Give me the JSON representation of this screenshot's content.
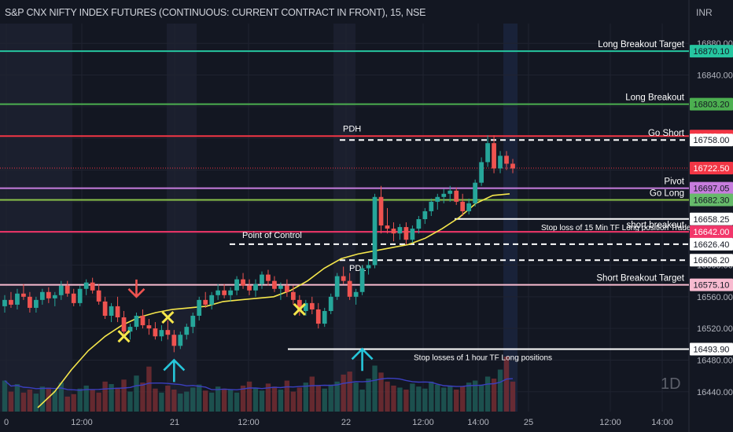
{
  "header": {
    "symbol_title": "S&P CNX NIFTY INDEX FUTURES (CONTINUOUS: CURRENT CONTRACT IN FRONT), 15, NSE",
    "currency": "INR",
    "timeframe_badge": "1D"
  },
  "colors": {
    "background": "#131722",
    "grid": "#1f2330",
    "up_candle": "#26a69a",
    "down_candle": "#ef5350",
    "vwap_line": "#f5e64b",
    "volume_ma": "#3b3fbf"
  },
  "chart_data": {
    "type": "candlestick",
    "title": "S&P CNX NIFTY INDEX FUTURES (CONTINUOUS: CURRENT CONTRACT IN FRONT), 15, NSE",
    "ylim": [
      16415,
      16905
    ],
    "y_ticks": [
      "16880.00",
      "16840.00",
      "16800.00",
      "16760.00",
      "16720.00",
      "16680.00",
      "16640.00",
      "16600.00",
      "16560.00",
      "16520.00",
      "16480.00",
      "16440.00"
    ],
    "x_ticks": [
      "0",
      "12:00",
      "21",
      "12:00",
      "22",
      "12:00",
      "14:00",
      "25",
      "12:00",
      "14:00"
    ],
    "levels": [
      {
        "label": "Long Breakout Target",
        "value": 16870.1,
        "price_text": "16870.10",
        "color": "#26c6a0",
        "badge_bg": "#26c6a0",
        "badge_fg": "#131722",
        "style": "solid",
        "x_from": 0
      },
      {
        "label": "Long Breakout",
        "value": 16803.2,
        "price_text": "16803.20",
        "color": "#4caf50",
        "badge_bg": "#4caf50",
        "badge_fg": "#131722",
        "style": "solid",
        "x_from": 0
      },
      {
        "label": "",
        "value": 16762.9,
        "price_text": "16762.90",
        "color": "#f23645",
        "badge_bg": "#f23645",
        "badge_fg": "#ffffff",
        "style": "solid",
        "x_from": 0
      },
      {
        "label": "Go Short",
        "value": 16758.0,
        "price_text": "16758.00",
        "color": "#ffffff",
        "badge_bg": "#ffffff",
        "badge_fg": "#131722",
        "style": "dashed",
        "x_from": 432
      },
      {
        "label": "",
        "value": 16722.5,
        "price_text": "16722.50",
        "color": "#f23645",
        "badge_bg": "#f23645",
        "badge_fg": "#ffffff",
        "style": "dotted",
        "x_from": 0
      },
      {
        "label": "Pivot",
        "value": 16697.05,
        "price_text": "16697.05",
        "color": "#c77dde",
        "badge_bg": "#c77dde",
        "badge_fg": "#131722",
        "style": "solid",
        "x_from": 0
      },
      {
        "label": "Go Long",
        "value": 16682.3,
        "price_text": "16682.30",
        "color": "#8bc34a",
        "badge_bg": "#66bb6a",
        "badge_fg": "#131722",
        "style": "solid",
        "x_from": 0
      },
      {
        "label": "Stop loss of 15 Min TF Long position Traders",
        "value": 16658.25,
        "price_text": "16658.25",
        "color": "#ffffff",
        "badge_bg": "#ffffff",
        "badge_fg": "#131722",
        "style": "solid",
        "x_from": 578
      },
      {
        "label": "short breakout",
        "value": 16642.0,
        "price_text": "16642.00",
        "color": "#f2366a",
        "badge_bg": "#f2366a",
        "badge_fg": "#ffffff",
        "style": "solid",
        "x_from": 0
      },
      {
        "label": "",
        "value": 16626.4,
        "price_text": "16626.40",
        "color": "#ffffff",
        "badge_bg": "#ffffff",
        "badge_fg": "#131722",
        "style": "dashed",
        "x_from": 292
      },
      {
        "label": "",
        "value": 16606.2,
        "price_text": "16606.20",
        "color": "#ffffff",
        "badge_bg": "#ffffff",
        "badge_fg": "#131722",
        "style": "dashed",
        "x_from": 432
      },
      {
        "label": "Short  Breakout Target",
        "value": 16575.1,
        "price_text": "16575.10",
        "color": "#f8bbd0",
        "badge_bg": "#f8bbd0",
        "badge_fg": "#131722",
        "style": "solid",
        "x_from": 0
      },
      {
        "label": "Stop losses of 1 hour TF Long positions",
        "value": 16493.9,
        "price_text": "16493.90",
        "color": "#ffffff",
        "badge_bg": "#ffffff",
        "badge_fg": "#131722",
        "style": "solid",
        "x_from": 366
      }
    ],
    "annotations": {
      "pdh": "PDH",
      "pdl": "PDL",
      "point_of_control": "Point of Control"
    },
    "candles": [
      [
        16548,
        16562,
        16540,
        16556
      ],
      [
        16556,
        16566,
        16546,
        16550
      ],
      [
        16550,
        16570,
        16544,
        16564
      ],
      [
        16564,
        16576,
        16556,
        16560
      ],
      [
        16560,
        16566,
        16540,
        16546
      ],
      [
        16546,
        16560,
        16540,
        16556
      ],
      [
        16556,
        16570,
        16550,
        16566
      ],
      [
        16566,
        16572,
        16552,
        16558
      ],
      [
        16558,
        16566,
        16548,
        16562
      ],
      [
        16562,
        16580,
        16556,
        16574
      ],
      [
        16574,
        16580,
        16560,
        16564
      ],
      [
        16564,
        16570,
        16548,
        16552
      ],
      [
        16552,
        16574,
        16548,
        16570
      ],
      [
        16570,
        16582,
        16562,
        16578
      ],
      [
        16578,
        16584,
        16564,
        16568
      ],
      [
        16568,
        16576,
        16550,
        16554
      ],
      [
        16554,
        16560,
        16532,
        16536
      ],
      [
        16536,
        16552,
        16528,
        16548
      ],
      [
        16548,
        16560,
        16528,
        16534
      ],
      [
        16534,
        16542,
        16512,
        16516
      ],
      [
        16516,
        16526,
        16506,
        16522
      ],
      [
        16522,
        16540,
        16518,
        16536
      ],
      [
        16536,
        16544,
        16520,
        16524
      ],
      [
        16524,
        16532,
        16512,
        16520
      ],
      [
        16520,
        16528,
        16506,
        16510
      ],
      [
        16510,
        16524,
        16504,
        16518
      ],
      [
        16518,
        16530,
        16506,
        16512
      ],
      [
        16512,
        16518,
        16490,
        16498
      ],
      [
        16498,
        16516,
        16494,
        16512
      ],
      [
        16512,
        16526,
        16506,
        16522
      ],
      [
        16522,
        16540,
        16514,
        16536
      ],
      [
        16536,
        16560,
        16530,
        16556
      ],
      [
        16556,
        16566,
        16546,
        16550
      ],
      [
        16550,
        16566,
        16544,
        16562
      ],
      [
        16562,
        16576,
        16556,
        16568
      ],
      [
        16568,
        16576,
        16558,
        16562
      ],
      [
        16562,
        16572,
        16554,
        16568
      ],
      [
        16568,
        16586,
        16562,
        16582
      ],
      [
        16582,
        16590,
        16570,
        16574
      ],
      [
        16574,
        16582,
        16562,
        16568
      ],
      [
        16568,
        16582,
        16560,
        16576
      ],
      [
        16576,
        16592,
        16570,
        16588
      ],
      [
        16588,
        16594,
        16574,
        16580
      ],
      [
        16580,
        16586,
        16566,
        16570
      ],
      [
        16570,
        16578,
        16556,
        16574
      ],
      [
        16574,
        16582,
        16560,
        16566
      ],
      [
        16566,
        16574,
        16550,
        16556
      ],
      [
        16556,
        16562,
        16536,
        16542
      ],
      [
        16542,
        16556,
        16536,
        16552
      ],
      [
        16552,
        16560,
        16538,
        16544
      ],
      [
        16544,
        16552,
        16520,
        16526
      ],
      [
        16526,
        16546,
        16522,
        16542
      ],
      [
        16542,
        16564,
        16538,
        16560
      ],
      [
        16560,
        16590,
        16556,
        16586
      ],
      [
        16586,
        16598,
        16576,
        16580
      ],
      [
        16580,
        16590,
        16556,
        16560
      ],
      [
        16560,
        16570,
        16550,
        16566
      ],
      [
        16566,
        16600,
        16562,
        16596
      ],
      [
        16596,
        16606,
        16588,
        16600
      ],
      [
        16600,
        16690,
        16596,
        16686
      ],
      [
        16686,
        16700,
        16640,
        16650
      ],
      [
        16650,
        16672,
        16640,
        16646
      ],
      [
        16646,
        16654,
        16630,
        16640
      ],
      [
        16640,
        16652,
        16632,
        16648
      ],
      [
        16648,
        16654,
        16626,
        16632
      ],
      [
        16632,
        16650,
        16628,
        16646
      ],
      [
        16646,
        16662,
        16640,
        16658
      ],
      [
        16658,
        16672,
        16652,
        16668
      ],
      [
        16668,
        16684,
        16662,
        16680
      ],
      [
        16680,
        16690,
        16670,
        16686
      ],
      [
        16686,
        16696,
        16678,
        16690
      ],
      [
        16690,
        16700,
        16680,
        16694
      ],
      [
        16694,
        16698,
        16676,
        16680
      ],
      [
        16680,
        16690,
        16662,
        16668
      ],
      [
        16668,
        16684,
        16664,
        16678
      ],
      [
        16678,
        16708,
        16674,
        16704
      ],
      [
        16704,
        16736,
        16700,
        16730
      ],
      [
        16730,
        16764,
        16724,
        16754
      ],
      [
        16754,
        16764,
        16716,
        16722
      ],
      [
        16722,
        16744,
        16716,
        16738
      ],
      [
        16738,
        16744,
        16720,
        16728
      ],
      [
        16728,
        16734,
        16716,
        16722
      ]
    ],
    "vwap": [
      16420,
      16440,
      16468,
      16492,
      16510,
      16524,
      16534,
      16540,
      16544,
      16546,
      16548,
      16554,
      16556,
      16558,
      16560,
      16568,
      16580,
      16596,
      16608,
      16614,
      16618,
      16622,
      16626,
      16634,
      16646,
      16660,
      16678,
      16688,
      16690
    ],
    "volume": [
      62,
      40,
      55,
      38,
      44,
      36,
      50,
      48,
      42,
      58,
      30,
      35,
      46,
      52,
      44,
      38,
      60,
      55,
      48,
      64,
      40,
      72,
      58,
      90,
      46,
      38,
      52,
      44,
      36,
      40,
      48,
      54,
      42,
      38,
      50,
      46,
      44,
      38,
      52,
      60,
      48,
      42,
      56,
      50,
      44,
      62,
      40,
      48,
      58,
      70,
      52,
      46,
      54,
      60,
      74,
      80,
      58,
      44,
      66,
      92,
      78,
      60,
      52,
      48,
      44,
      56,
      50,
      46,
      60,
      54,
      48,
      52,
      44,
      50,
      58,
      62,
      54,
      70,
      66,
      84,
      110,
      60
    ],
    "signals": [
      {
        "type": "cross",
        "color": "#f5e64b",
        "price": 16510,
        "index": 19
      },
      {
        "type": "cross",
        "color": "#f5e64b",
        "price": 16534,
        "index": 26
      },
      {
        "type": "cross",
        "color": "#f5e64b",
        "price": 16544,
        "index": 47
      },
      {
        "type": "arrow-down",
        "color": "#ef5350",
        "price": 16560,
        "index": 21
      },
      {
        "type": "arrow-up",
        "color": "#26c6da",
        "price": 16486,
        "index": 27
      },
      {
        "type": "arrow-up",
        "color": "#26c6da",
        "price": 16500,
        "index": 57
      }
    ]
  }
}
